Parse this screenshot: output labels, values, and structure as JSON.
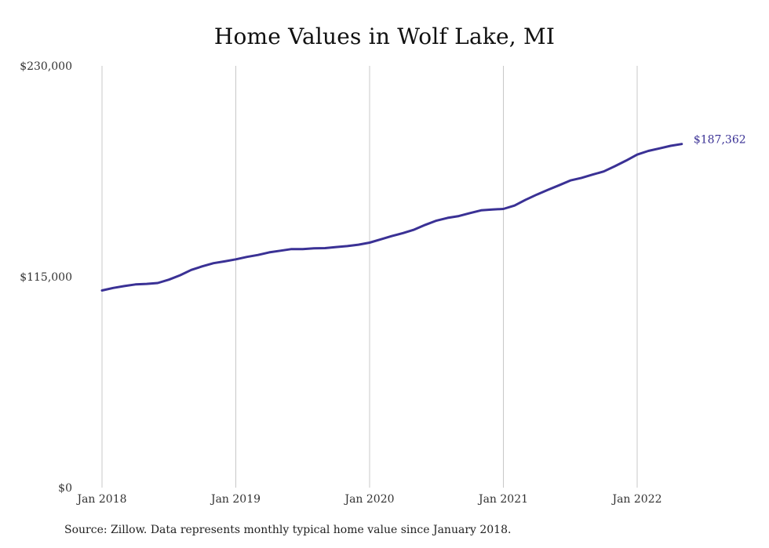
{
  "colors": {
    "line": "#3a3195",
    "gridline": "#c8c8c8",
    "text": "#333333"
  },
  "chart_data": {
    "type": "line",
    "title": "Home Values in Wolf Lake, MI",
    "xlabel": "",
    "ylabel": "",
    "x_tick_labels": [
      "Jan 2018",
      "Jan 2019",
      "Jan 2020",
      "Jan 2021",
      "Jan 2022"
    ],
    "y_tick_labels": [
      "$0",
      "$115,000",
      "$230,000"
    ],
    "ylim": [
      0,
      230000
    ],
    "xlim": [
      "2018-01",
      "2022-05"
    ],
    "grid": "vertical",
    "end_label": "$187,362",
    "series": [
      {
        "x": [
          "2018-01",
          "2018-02",
          "2018-03",
          "2018-04",
          "2018-05",
          "2018-06",
          "2018-07",
          "2018-08",
          "2018-09",
          "2018-10",
          "2018-11",
          "2018-12",
          "2019-01",
          "2019-02",
          "2019-03",
          "2019-04",
          "2019-05",
          "2019-06",
          "2019-07",
          "2019-08",
          "2019-09",
          "2019-10",
          "2019-11",
          "2019-12",
          "2020-01",
          "2020-02",
          "2020-03",
          "2020-04",
          "2020-05",
          "2020-06",
          "2020-07",
          "2020-08",
          "2020-09",
          "2020-10",
          "2020-11",
          "2020-12",
          "2021-01",
          "2021-02",
          "2021-03",
          "2021-04",
          "2021-05",
          "2021-06",
          "2021-07",
          "2021-08",
          "2021-09",
          "2021-10",
          "2021-11",
          "2021-12",
          "2022-01",
          "2022-02",
          "2022-03",
          "2022-04",
          "2022-05"
        ],
        "y": [
          107500,
          108900,
          109900,
          110800,
          111100,
          111600,
          113400,
          115800,
          118700,
          120700,
          122400,
          123400,
          124500,
          125800,
          126900,
          128300,
          129200,
          130100,
          130100,
          130500,
          130600,
          131200,
          131700,
          132500,
          133600,
          135400,
          137200,
          138800,
          140700,
          143300,
          145600,
          147100,
          148100,
          149700,
          151200,
          151700,
          152000,
          153800,
          157000,
          159800,
          162400,
          164900,
          167500,
          168900,
          170700,
          172400,
          175300,
          178300,
          181600,
          183600,
          185000,
          186400,
          187362
        ]
      }
    ]
  },
  "source_note": "Source: Zillow. Data represents monthly typical home value since January 2018."
}
